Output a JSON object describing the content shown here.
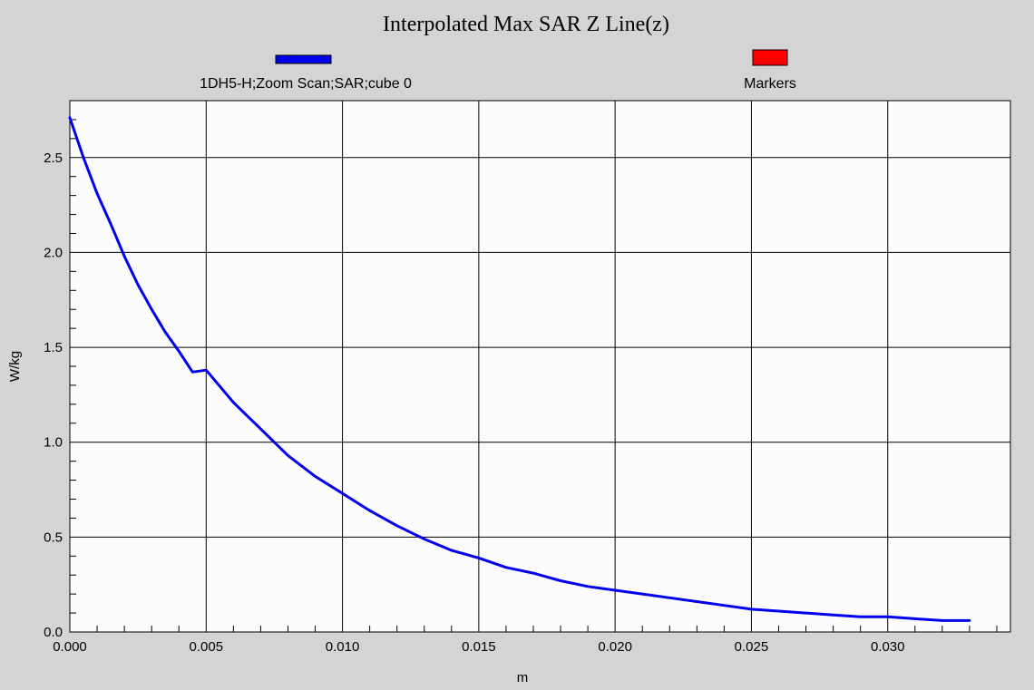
{
  "chart_data": {
    "type": "line",
    "title": "Interpolated Max SAR Z Line(z)",
    "xlabel": "m",
    "ylabel": "W/kg",
    "xlim": [
      0.0,
      0.0345
    ],
    "ylim": [
      0.0,
      2.8
    ],
    "x_ticks": [
      "0.000",
      "0.005",
      "0.010",
      "0.015",
      "0.020",
      "0.025",
      "0.030"
    ],
    "y_ticks": [
      "0.0",
      "0.5",
      "1.0",
      "1.5",
      "2.0",
      "2.5"
    ],
    "grid": true,
    "legend_position": "top",
    "series": [
      {
        "name": "1DH5-H;Zoom Scan;SAR;cube 0",
        "color": "#0000ee",
        "x": [
          0.0,
          0.0005,
          0.001,
          0.0015,
          0.002,
          0.0025,
          0.003,
          0.0035,
          0.004,
          0.0045,
          0.005,
          0.006,
          0.007,
          0.008,
          0.009,
          0.01,
          0.011,
          0.012,
          0.013,
          0.014,
          0.015,
          0.016,
          0.017,
          0.018,
          0.019,
          0.02,
          0.021,
          0.022,
          0.023,
          0.024,
          0.025,
          0.026,
          0.027,
          0.028,
          0.029,
          0.03,
          0.031,
          0.032,
          0.033
        ],
        "values": [
          2.71,
          2.5,
          2.31,
          2.15,
          1.98,
          1.83,
          1.7,
          1.58,
          1.48,
          1.37,
          1.38,
          1.21,
          1.07,
          0.93,
          0.82,
          0.73,
          0.64,
          0.56,
          0.49,
          0.43,
          0.39,
          0.34,
          0.31,
          0.27,
          0.24,
          0.22,
          0.2,
          0.18,
          0.16,
          0.14,
          0.12,
          0.11,
          0.1,
          0.09,
          0.08,
          0.08,
          0.07,
          0.06,
          0.06
        ]
      },
      {
        "name": "Markers",
        "color": "#ff0000",
        "x": [],
        "values": []
      }
    ]
  }
}
